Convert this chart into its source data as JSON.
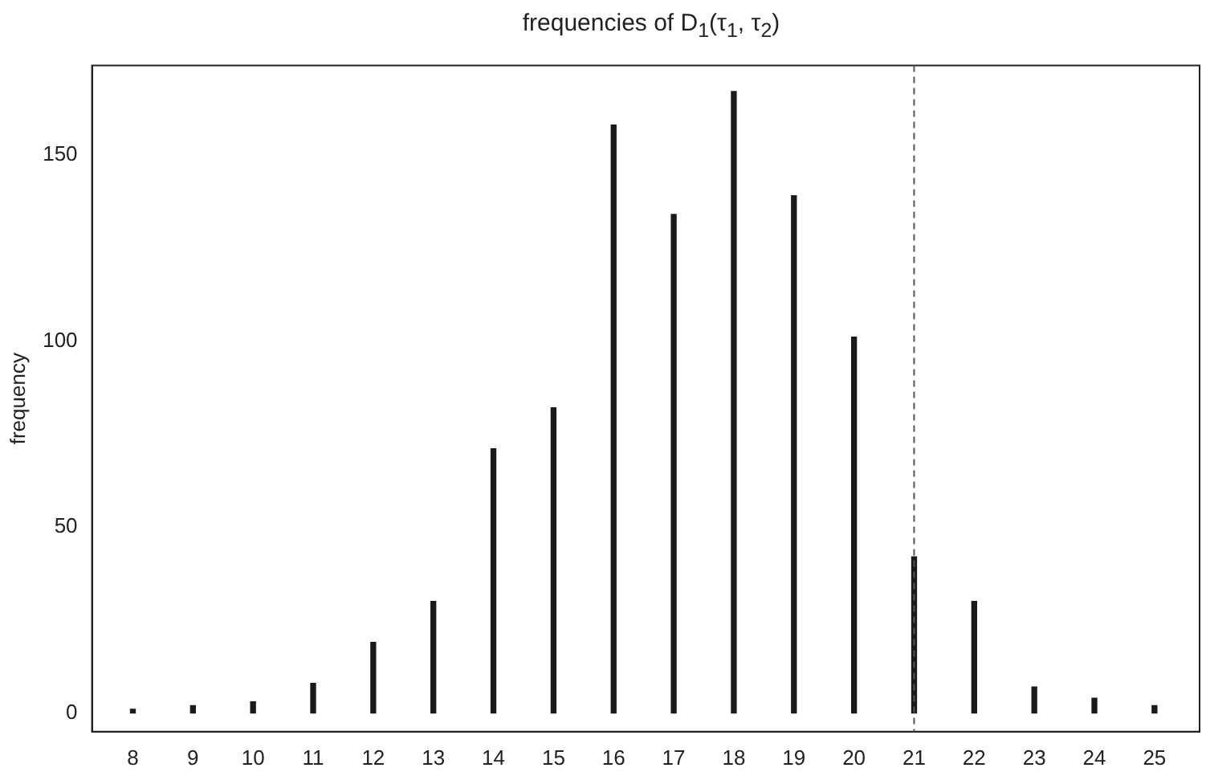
{
  "chart_data": {
    "type": "bar",
    "title": "frequencies of D$_{1}$(τ$_{1}$, τ$_{2}$)",
    "ylabel": "frequency",
    "x": [
      8,
      9,
      10,
      11,
      12,
      13,
      14,
      15,
      16,
      17,
      18,
      19,
      20,
      21,
      22,
      23,
      24,
      25
    ],
    "values": [
      1,
      2,
      3,
      8,
      19,
      30,
      71,
      82,
      158,
      134,
      167,
      139,
      101,
      42,
      30,
      7,
      4,
      2
    ],
    "color": "#1a1a1a",
    "xlim": [
      7.32,
      25.75
    ],
    "xticks": [
      8,
      9,
      10,
      11,
      12,
      13,
      14,
      15,
      16,
      17,
      18,
      19,
      20,
      21,
      22,
      23,
      24,
      25
    ],
    "ylim": [
      -5,
      174
    ],
    "yticks": [
      0,
      50,
      100,
      150
    ],
    "ref_lines": [
      {
        "axis": "x",
        "value": 21,
        "color": "#555555",
        "line_style": "dashed"
      }
    ],
    "grid": false,
    "legend": false
  }
}
